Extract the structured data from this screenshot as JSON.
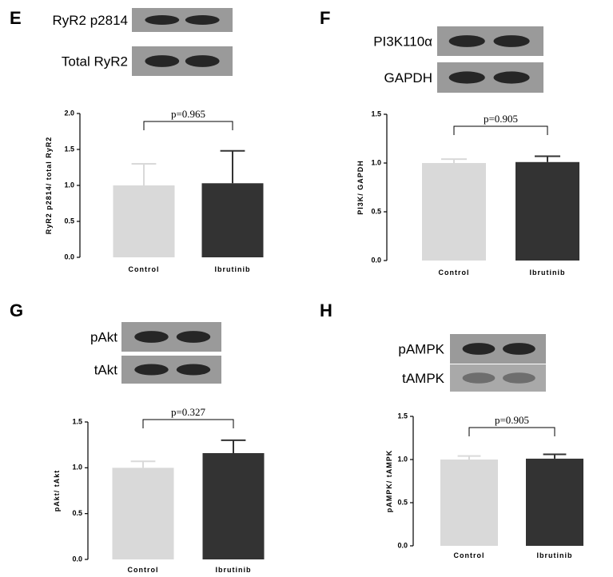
{
  "chart_data": [
    {
      "type": "bar",
      "panel": "E",
      "blot_labels": [
        "RyR2 p2814",
        "Total RyR2"
      ],
      "y_label": "RyR2 p2814/ total RyR2",
      "categories": [
        "Control",
        "Ibrutinib"
      ],
      "values": [
        1.0,
        1.03
      ],
      "errors": [
        0.3,
        0.45
      ],
      "colors": [
        "#d9d9d9",
        "#333333"
      ],
      "annotation": "p=0.965",
      "ylim": [
        0,
        2
      ],
      "yticks": [
        {
          "value": 0,
          "label": "0.0"
        },
        0.5,
        {
          "value": 1,
          "label": "1.0"
        },
        1.5,
        {
          "value": 2,
          "label": "2.0"
        }
      ]
    },
    {
      "type": "bar",
      "panel": "F",
      "blot_labels": [
        "PI3K110α",
        "GAPDH"
      ],
      "y_label": "PI3K/ GAPDH",
      "categories": [
        "Control",
        "Ibrutinib"
      ],
      "values": [
        1.0,
        1.01
      ],
      "errors": [
        0.04,
        0.06
      ],
      "colors": [
        "#d9d9d9",
        "#333333"
      ],
      "annotation": "p=0.905",
      "ylim": [
        0,
        1.5
      ],
      "yticks": [
        {
          "value": 0,
          "label": "0.0"
        },
        0.5,
        {
          "value": 1,
          "label": "1.0"
        },
        1.5
      ]
    },
    {
      "type": "bar",
      "panel": "G",
      "blot_labels": [
        "pAkt",
        "tAkt"
      ],
      "y_label": "pAkt/ tAkt",
      "categories": [
        "Control",
        "Ibrutinib"
      ],
      "values": [
        1.0,
        1.16
      ],
      "errors": [
        0.07,
        0.14
      ],
      "colors": [
        "#d9d9d9",
        "#333333"
      ],
      "annotation": "p=0.327",
      "ylim": [
        0,
        1.5
      ],
      "yticks": [
        {
          "value": 0,
          "label": "0.0"
        },
        0.5,
        {
          "value": 1,
          "label": "1.0"
        },
        1.5
      ]
    },
    {
      "type": "bar",
      "panel": "H",
      "blot_labels": [
        "pAMPK",
        "tAMPK"
      ],
      "y_label": "pAMPK/ tAMPK",
      "categories": [
        "Control",
        "Ibrutinib"
      ],
      "values": [
        1.0,
        1.01
      ],
      "errors": [
        0.04,
        0.05
      ],
      "colors": [
        "#d9d9d9",
        "#333333"
      ],
      "annotation": "p=0.905",
      "ylim": [
        0,
        1.5
      ],
      "yticks": [
        {
          "value": 0,
          "label": "0.0"
        },
        0.5,
        {
          "value": 1,
          "label": "1.0"
        },
        1.5
      ]
    }
  ]
}
